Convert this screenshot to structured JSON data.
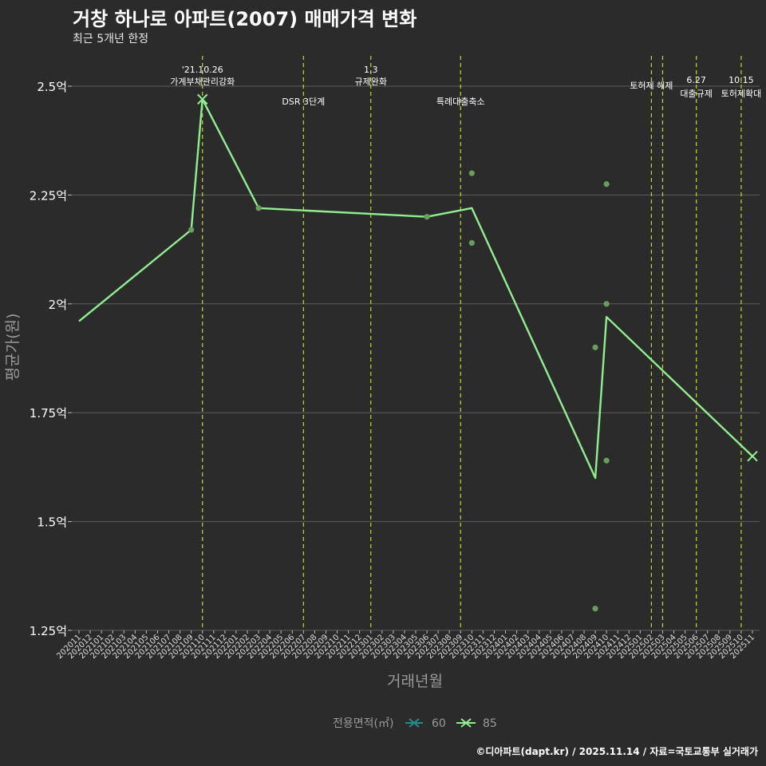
{
  "title": "거창 하나로 아파트(2007) 매매가격 변화",
  "subtitle": "최근 5개년 한정",
  "caption": "©디아파트(dapt.kr) / 2025.11.14 / 자료=국토교통부 실거래가",
  "colors": {
    "background": "#2b2b2b",
    "grid": "#5e5e5e",
    "line_85": "#90ee90",
    "marker_60": "#2a8a8a",
    "points": "#6a9e5e",
    "event_line": "#c8d62a"
  },
  "chart_data": {
    "type": "line",
    "title": "거창 하나로 아파트(2007) 매매가격 변화",
    "xlabel": "거래년월",
    "ylabel": "평균가(원)",
    "ylim": [
      1.25,
      2.5
    ],
    "y_ticks": [
      {
        "value": 1.25,
        "label": "1.25억"
      },
      {
        "value": 1.5,
        "label": "1.5억"
      },
      {
        "value": 1.75,
        "label": "1.75억"
      },
      {
        "value": 2.0,
        "label": "2억"
      },
      {
        "value": 2.25,
        "label": "2.25억"
      },
      {
        "value": 2.5,
        "label": "2.5억"
      }
    ],
    "categories": [
      "202011",
      "202012",
      "202101",
      "202102",
      "202103",
      "202104",
      "202105",
      "202106",
      "202107",
      "202108",
      "202109",
      "202110",
      "202111",
      "202112",
      "202201",
      "202202",
      "202203",
      "202204",
      "202205",
      "202206",
      "202207",
      "202208",
      "202209",
      "202210",
      "202211",
      "202212",
      "202301",
      "202302",
      "202303",
      "202304",
      "202305",
      "202306",
      "202307",
      "202308",
      "202309",
      "202310",
      "202311",
      "202312",
      "202401",
      "202402",
      "202403",
      "202404",
      "202405",
      "202406",
      "202407",
      "202408",
      "202409",
      "202410",
      "202411",
      "202412",
      "202501",
      "202502",
      "202503",
      "202504",
      "202505",
      "202506",
      "202507",
      "202508",
      "202509",
      "202510",
      "202511"
    ],
    "legend_title": "전용면적(㎡)",
    "series": [
      {
        "name": "60",
        "points": []
      },
      {
        "name": "85",
        "points": [
          {
            "x": "202011",
            "y": 1.96
          },
          {
            "x": "202109",
            "y": 2.17
          },
          {
            "x": "202110",
            "y": 2.47
          },
          {
            "x": "202203",
            "y": 2.22
          },
          {
            "x": "202306",
            "y": 2.2
          },
          {
            "x": "202310",
            "y": 2.22
          },
          {
            "x": "202409",
            "y": 1.6
          },
          {
            "x": "202410",
            "y": 1.97
          },
          {
            "x": "202511",
            "y": 1.65
          }
        ]
      }
    ],
    "transactions": [
      {
        "x": "202109",
        "y": 2.17
      },
      {
        "x": "202203",
        "y": 2.22
      },
      {
        "x": "202306",
        "y": 2.2
      },
      {
        "x": "202310",
        "y": 2.3
      },
      {
        "x": "202310",
        "y": 2.14
      },
      {
        "x": "202409",
        "y": 1.9
      },
      {
        "x": "202409",
        "y": 1.3
      },
      {
        "x": "202410",
        "y": 2.275
      },
      {
        "x": "202410",
        "y": 2.0
      },
      {
        "x": "202410",
        "y": 1.64
      }
    ],
    "cross_markers": [
      {
        "x": "202110",
        "y": 2.47
      },
      {
        "x": "202511",
        "y": 1.65
      }
    ],
    "events": [
      {
        "x": "202110",
        "lines": [
          "'21.10.26",
          "가계부채관리강화"
        ],
        "level": 0
      },
      {
        "x": "202207",
        "lines": [
          "DSR 3단계"
        ],
        "level": 2
      },
      {
        "x": "202301",
        "lines": [
          "1.3",
          "규제완화"
        ],
        "level": 0
      },
      {
        "x": "202309",
        "lines": [
          "특례대출축소"
        ],
        "level": 2
      },
      {
        "x": "202502",
        "lines": [
          "토허제 해제"
        ],
        "level": 1,
        "align": "end"
      },
      {
        "x": "202503",
        "lines": [],
        "level": 1
      },
      {
        "x": "202506",
        "lines": [
          "6.27",
          "대출규제"
        ],
        "level": 3
      },
      {
        "x": "202510",
        "lines": [
          "10.15",
          "토허제확대"
        ],
        "level": 3
      }
    ]
  }
}
